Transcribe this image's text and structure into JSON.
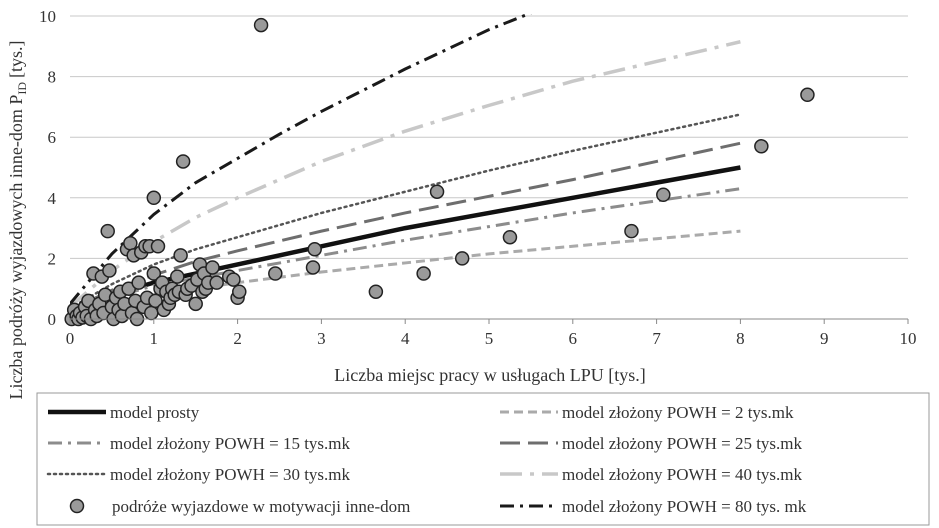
{
  "chart_data": {
    "type": "scatter",
    "xlabel": "Liczba miejsc pracy w usługach LPU [tys.]",
    "ylabel_main": "Liczba podróży wyjazdowych inne-dom P",
    "ylabel_sub": "ID",
    "ylabel_unit": "[tys.]",
    "xlim": [
      0,
      10
    ],
    "ylim": [
      0,
      10
    ],
    "x_ticks": [
      "0",
      "1",
      "2",
      "3",
      "4",
      "5",
      "6",
      "7",
      "8",
      "9",
      "10"
    ],
    "y_ticks": [
      "0",
      "2",
      "4",
      "6",
      "8",
      "10"
    ],
    "grid": "horizontal",
    "legend_position": "bottom",
    "series": [
      {
        "name": "model prosty",
        "kind": "line",
        "style": "solid",
        "color": "#111111",
        "x": [
          0,
          0.5,
          1,
          1.5,
          2,
          3,
          4,
          5,
          6,
          7,
          8
        ],
        "y": [
          0.3,
          0.8,
          1.2,
          1.5,
          1.8,
          2.4,
          3.0,
          3.5,
          4.0,
          4.5,
          5.0
        ]
      },
      {
        "name": "model złożony POWH = 2 tys.mk",
        "kind": "line",
        "style": "dash",
        "color": "#aaaaaa",
        "x": [
          0,
          0.5,
          1,
          1.5,
          2,
          3,
          4,
          5,
          6,
          7,
          8
        ],
        "y": [
          0.2,
          0.5,
          0.8,
          1.0,
          1.2,
          1.55,
          1.85,
          2.15,
          2.4,
          2.65,
          2.9
        ]
      },
      {
        "name": "model złożony POWH = 15 tys.mk",
        "kind": "line",
        "style": "dashdot",
        "color": "#8c8c8c",
        "x": [
          0,
          0.5,
          1,
          1.5,
          2,
          3,
          4,
          5,
          6,
          7,
          8
        ],
        "y": [
          0.25,
          0.7,
          1.1,
          1.35,
          1.6,
          2.1,
          2.6,
          3.05,
          3.5,
          3.9,
          4.3
        ]
      },
      {
        "name": "model złożony POWH = 25 tys.mk",
        "kind": "line",
        "style": "longdash",
        "color": "#6e6e6e",
        "x": [
          0,
          0.5,
          1,
          1.5,
          2,
          3,
          4,
          5,
          6,
          7,
          8
        ],
        "y": [
          0.3,
          0.95,
          1.45,
          1.9,
          2.25,
          2.9,
          3.5,
          4.05,
          4.6,
          5.2,
          5.8
        ]
      },
      {
        "name": "model złożony POWH = 30 tys.mk",
        "kind": "line",
        "style": "dotted",
        "color": "#555555",
        "x": [
          0,
          0.5,
          1,
          1.5,
          2,
          3,
          4,
          5,
          6,
          7,
          8
        ],
        "y": [
          0.35,
          1.15,
          1.8,
          2.3,
          2.7,
          3.5,
          4.2,
          4.9,
          5.55,
          6.15,
          6.75
        ]
      },
      {
        "name": "model złożony POWH = 40 tys.mk",
        "kind": "line",
        "style": "longdashdot",
        "color": "#c8c8c8",
        "x": [
          0,
          0.5,
          1,
          1.5,
          2,
          3,
          4,
          5,
          6,
          7,
          8
        ],
        "y": [
          0.4,
          1.6,
          2.55,
          3.35,
          4.0,
          5.2,
          6.2,
          7.05,
          7.85,
          8.5,
          9.15
        ]
      },
      {
        "name": "model złożony POWH = 80 tys. mk",
        "kind": "line",
        "style": "dashdot",
        "color": "#1a1a1a",
        "x": [
          0,
          0.5,
          1,
          1.5,
          2,
          2.5,
          3,
          3.5,
          4,
          4.5,
          5,
          5.5
        ],
        "y": [
          0.5,
          2.15,
          3.45,
          4.5,
          5.3,
          6.1,
          6.85,
          7.55,
          8.25,
          8.9,
          9.55,
          10.1
        ]
      },
      {
        "name": "podróże wyjazdowe w motywacji inne-dom",
        "kind": "scatter",
        "color": "#9a9a9a",
        "points": [
          [
            0.02,
            0.0
          ],
          [
            0.05,
            0.3
          ],
          [
            0.08,
            0.1
          ],
          [
            0.1,
            0.0
          ],
          [
            0.12,
            0.2
          ],
          [
            0.15,
            0.05
          ],
          [
            0.18,
            0.4
          ],
          [
            0.2,
            0.1
          ],
          [
            0.22,
            0.6
          ],
          [
            0.25,
            0.0
          ],
          [
            0.28,
            1.5
          ],
          [
            0.3,
            0.3
          ],
          [
            0.32,
            0.1
          ],
          [
            0.35,
            0.5
          ],
          [
            0.38,
            1.4
          ],
          [
            0.4,
            0.2
          ],
          [
            0.42,
            0.8
          ],
          [
            0.45,
            2.9
          ],
          [
            0.47,
            1.6
          ],
          [
            0.5,
            0.4
          ],
          [
            0.52,
            0.0
          ],
          [
            0.55,
            0.7
          ],
          [
            0.58,
            0.3
          ],
          [
            0.6,
            0.9
          ],
          [
            0.62,
            0.1
          ],
          [
            0.65,
            0.5
          ],
          [
            0.68,
            2.3
          ],
          [
            0.7,
            1.0
          ],
          [
            0.72,
            2.5
          ],
          [
            0.74,
            0.2
          ],
          [
            0.76,
            2.1
          ],
          [
            0.78,
            0.6
          ],
          [
            0.8,
            0.0
          ],
          [
            0.82,
            1.2
          ],
          [
            0.85,
            2.2
          ],
          [
            0.88,
            0.4
          ],
          [
            0.9,
            2.4
          ],
          [
            0.92,
            0.7
          ],
          [
            0.95,
            2.4
          ],
          [
            0.97,
            0.2
          ],
          [
            1.0,
            4.0
          ],
          [
            1.0,
            1.5
          ],
          [
            1.02,
            0.6
          ],
          [
            1.05,
            2.4
          ],
          [
            1.08,
            1.0
          ],
          [
            1.1,
            1.2
          ],
          [
            1.12,
            0.3
          ],
          [
            1.15,
            0.9
          ],
          [
            1.18,
            0.5
          ],
          [
            1.2,
            0.7
          ],
          [
            1.22,
            1.0
          ],
          [
            1.25,
            0.8
          ],
          [
            1.28,
            1.4
          ],
          [
            1.3,
            0.9
          ],
          [
            1.32,
            2.1
          ],
          [
            1.35,
            5.2
          ],
          [
            1.38,
            0.8
          ],
          [
            1.4,
            1.0
          ],
          [
            1.45,
            1.1
          ],
          [
            1.5,
            0.5
          ],
          [
            1.52,
            1.3
          ],
          [
            1.55,
            1.8
          ],
          [
            1.58,
            0.9
          ],
          [
            1.6,
            1.5
          ],
          [
            1.62,
            1.0
          ],
          [
            1.65,
            1.2
          ],
          [
            1.7,
            1.7
          ],
          [
            1.75,
            1.2
          ],
          [
            1.9,
            1.4
          ],
          [
            1.95,
            1.3
          ],
          [
            2.0,
            0.7
          ],
          [
            2.02,
            0.9
          ],
          [
            2.28,
            9.7
          ],
          [
            2.45,
            1.5
          ],
          [
            2.9,
            1.7
          ],
          [
            2.92,
            2.3
          ],
          [
            3.65,
            0.9
          ],
          [
            4.22,
            1.5
          ],
          [
            4.38,
            4.2
          ],
          [
            4.68,
            2.0
          ],
          [
            5.25,
            2.7
          ],
          [
            6.7,
            2.9
          ],
          [
            7.08,
            4.1
          ],
          [
            8.25,
            5.7
          ],
          [
            8.8,
            7.4
          ]
        ]
      }
    ]
  }
}
